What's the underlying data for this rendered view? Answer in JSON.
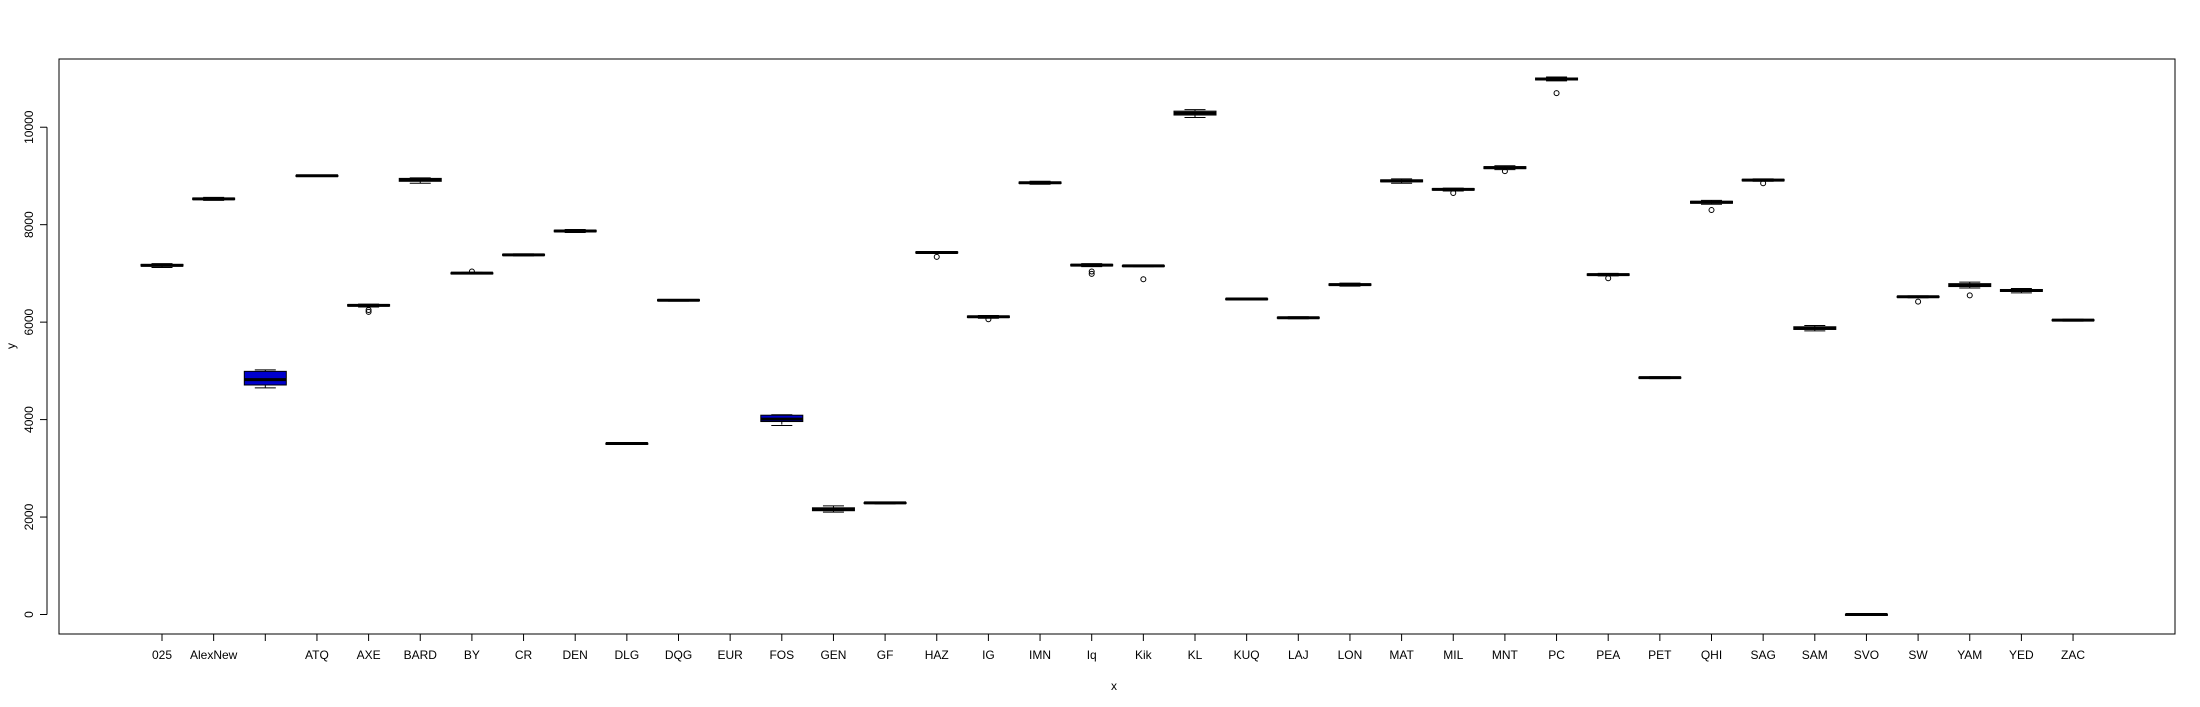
{
  "chart_data": {
    "type": "box",
    "title": "",
    "xlabel": "x",
    "ylabel": "y",
    "ylim": [
      -400,
      11400
    ],
    "yticks": [
      0,
      2000,
      4000,
      6000,
      8000,
      10000
    ],
    "grid": false,
    "legend": "none",
    "colors": {
      "default_fill": "#ffffff",
      "highlight_fill": "#0000cd",
      "stroke": "#000000"
    },
    "categories": [
      "025",
      "AlexNew",
      "",
      "ATQ",
      "AXE",
      "BARD",
      "BY",
      "CR",
      "DEN",
      "DLG",
      "DQG",
      "EUR",
      "FOS",
      "GEN",
      "GF",
      "HAZ",
      "IG",
      "IMN",
      "Iq",
      "Kik",
      "KL",
      "KUQ",
      "LAJ",
      "LON",
      "MAT",
      "MIL",
      "MNT",
      "PC",
      "PEA",
      "PET",
      "QHI",
      "SAG",
      "SAM",
      "SVO",
      "SW",
      "YAM",
      "YED",
      "ZAC"
    ],
    "boxes": [
      {
        "cat": "025",
        "min": 7120,
        "q1": 7150,
        "median": 7165,
        "q3": 7185,
        "max": 7200,
        "outliers": []
      },
      {
        "cat": "AlexNew",
        "min": 8500,
        "q1": 8515,
        "median": 8530,
        "q3": 8545,
        "max": 8560,
        "outliers": []
      },
      {
        "cat": "",
        "min": 4650,
        "q1": 4710,
        "median": 4820,
        "q3": 4990,
        "max": 5020,
        "outliers": [],
        "highlight": true
      },
      {
        "cat": "ATQ",
        "min": 8990,
        "q1": 8998,
        "median": 9005,
        "q3": 9012,
        "max": 9020,
        "outliers": []
      },
      {
        "cat": "AXE",
        "min": 6310,
        "q1": 6330,
        "median": 6345,
        "q3": 6360,
        "max": 6370,
        "outliers": [
          6250,
          6210
        ]
      },
      {
        "cat": "BARD",
        "min": 8850,
        "q1": 8890,
        "median": 8920,
        "q3": 8950,
        "max": 8960,
        "outliers": []
      },
      {
        "cat": "BY",
        "min": 6990,
        "q1": 6995,
        "median": 7005,
        "q3": 7012,
        "max": 7020,
        "outliers": [
          7040
        ]
      },
      {
        "cat": "CR",
        "min": 7360,
        "q1": 7370,
        "median": 7380,
        "q3": 7392,
        "max": 7400,
        "outliers": []
      },
      {
        "cat": "DEN",
        "min": 7840,
        "q1": 7855,
        "median": 7870,
        "q3": 7885,
        "max": 7900,
        "outliers": []
      },
      {
        "cat": "DLG",
        "min": 3500,
        "q1": 3505,
        "median": 3510,
        "q3": 3515,
        "max": 3520,
        "outliers": []
      },
      {
        "cat": "DQG",
        "min": 6430,
        "q1": 6440,
        "median": 6450,
        "q3": 6460,
        "max": 6465,
        "outliers": []
      },
      {
        "cat": "EUR"
      },
      {
        "cat": "FOS",
        "min": 3880,
        "q1": 3960,
        "median": 4010,
        "q3": 4090,
        "max": 4100,
        "outliers": [],
        "highlight": true
      },
      {
        "cat": "GEN",
        "min": 2100,
        "q1": 2130,
        "median": 2160,
        "q3": 2190,
        "max": 2230,
        "outliers": []
      },
      {
        "cat": "GF",
        "min": 2270,
        "q1": 2280,
        "median": 2290,
        "q3": 2298,
        "max": 2305,
        "outliers": []
      },
      {
        "cat": "HAZ",
        "min": 7410,
        "q1": 7420,
        "median": 7430,
        "q3": 7440,
        "max": 7450,
        "outliers": [
          7340
        ]
      },
      {
        "cat": "IG",
        "min": 6080,
        "q1": 6095,
        "median": 6110,
        "q3": 6125,
        "max": 6135,
        "outliers": [
          6060
        ]
      },
      {
        "cat": "IMN",
        "min": 8830,
        "q1": 8845,
        "median": 8860,
        "q3": 8875,
        "max": 8890,
        "outliers": []
      },
      {
        "cat": "Iq",
        "min": 7140,
        "q1": 7155,
        "median": 7170,
        "q3": 7185,
        "max": 7200,
        "outliers": [
          7040,
          6990
        ]
      },
      {
        "cat": "Kik",
        "min": 7140,
        "q1": 7148,
        "median": 7155,
        "q3": 7162,
        "max": 7170,
        "outliers": [
          6880
        ]
      },
      {
        "cat": "KL",
        "min": 10200,
        "q1": 10250,
        "median": 10290,
        "q3": 10330,
        "max": 10360,
        "outliers": []
      },
      {
        "cat": "KUQ",
        "min": 6460,
        "q1": 6468,
        "median": 6475,
        "q3": 6482,
        "max": 6490,
        "outliers": []
      },
      {
        "cat": "LAJ",
        "min": 6070,
        "q1": 6080,
        "median": 6090,
        "q3": 6100,
        "max": 6110,
        "outliers": []
      },
      {
        "cat": "LON",
        "min": 6740,
        "q1": 6755,
        "median": 6770,
        "q3": 6785,
        "max": 6800,
        "outliers": []
      },
      {
        "cat": "MAT",
        "min": 8850,
        "q1": 8880,
        "median": 8900,
        "q3": 8920,
        "max": 8940,
        "outliers": []
      },
      {
        "cat": "MIL",
        "min": 8690,
        "q1": 8710,
        "median": 8725,
        "q3": 8740,
        "max": 8750,
        "outliers": [
          8650
        ]
      },
      {
        "cat": "MNT",
        "min": 9130,
        "q1": 9150,
        "median": 9170,
        "q3": 9190,
        "max": 9210,
        "outliers": [
          9100
        ]
      },
      {
        "cat": "PC",
        "min": 10950,
        "q1": 10970,
        "median": 10990,
        "q3": 11010,
        "max": 11030,
        "outliers": [
          10700
        ]
      },
      {
        "cat": "PEA",
        "min": 6950,
        "q1": 6960,
        "median": 6975,
        "q3": 6990,
        "max": 7000,
        "outliers": [
          6900
        ]
      },
      {
        "cat": "PET",
        "min": 4840,
        "q1": 4850,
        "median": 4860,
        "q3": 4870,
        "max": 4880,
        "outliers": []
      },
      {
        "cat": "QHI",
        "min": 8420,
        "q1": 8440,
        "median": 8460,
        "q3": 8480,
        "max": 8500,
        "outliers": [
          8300
        ]
      },
      {
        "cat": "SAG",
        "min": 8890,
        "q1": 8900,
        "median": 8915,
        "q3": 8930,
        "max": 8940,
        "outliers": [
          8850
        ]
      },
      {
        "cat": "SAM",
        "min": 5820,
        "q1": 5850,
        "median": 5875,
        "q3": 5905,
        "max": 5930,
        "outliers": []
      },
      {
        "cat": "SVO",
        "min": -5,
        "q1": -3,
        "median": 0,
        "q3": 3,
        "max": 5,
        "outliers": []
      },
      {
        "cat": "SW",
        "min": 6500,
        "q1": 6510,
        "median": 6520,
        "q3": 6530,
        "max": 6540,
        "outliers": [
          6420
        ]
      },
      {
        "cat": "YAM",
        "min": 6700,
        "q1": 6730,
        "median": 6760,
        "q3": 6790,
        "max": 6820,
        "outliers": [
          6550
        ]
      },
      {
        "cat": "YED",
        "min": 6600,
        "q1": 6630,
        "median": 6650,
        "q3": 6670,
        "max": 6690,
        "outliers": []
      },
      {
        "cat": "ZAC",
        "min": 6020,
        "q1": 6030,
        "median": 6040,
        "q3": 6050,
        "max": 6060,
        "outliers": []
      }
    ]
  }
}
